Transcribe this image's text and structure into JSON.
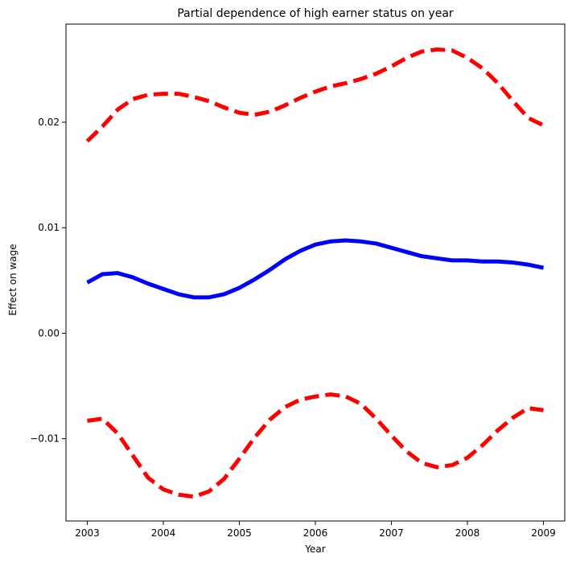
{
  "chart_data": {
    "type": "line",
    "title": "Partial dependence of high earner status on year",
    "xlabel": "Year",
    "ylabel": "Effect on wage",
    "xlim": [
      2002.72,
      2009.28
    ],
    "ylim": [
      -0.0178,
      0.0293
    ],
    "xticks": [
      2003,
      2004,
      2005,
      2006,
      2007,
      2008,
      2009
    ],
    "xtick_labels": [
      "2003",
      "2004",
      "2005",
      "2006",
      "2007",
      "2008",
      "2009"
    ],
    "yticks": [
      -0.01,
      0.0,
      0.01,
      0.02
    ],
    "ytick_labels": [
      "−0.01",
      "0.00",
      "0.01",
      "0.02"
    ],
    "grid": false,
    "series": [
      {
        "style": "solid",
        "color": "#0000ff",
        "points": [
          [
            2003.0,
            0.0048
          ],
          [
            2003.2,
            0.0056
          ],
          [
            2003.4,
            0.0057
          ],
          [
            2003.6,
            0.0053
          ],
          [
            2003.8,
            0.0047
          ],
          [
            2004.0,
            0.0042
          ],
          [
            2004.2,
            0.0037
          ],
          [
            2004.4,
            0.0034
          ],
          [
            2004.6,
            0.0034
          ],
          [
            2004.8,
            0.0037
          ],
          [
            2005.0,
            0.0043
          ],
          [
            2005.2,
            0.0051
          ],
          [
            2005.4,
            0.006
          ],
          [
            2005.6,
            0.007
          ],
          [
            2005.8,
            0.0078
          ],
          [
            2006.0,
            0.0084
          ],
          [
            2006.2,
            0.0087
          ],
          [
            2006.4,
            0.0088
          ],
          [
            2006.6,
            0.0087
          ],
          [
            2006.8,
            0.0085
          ],
          [
            2007.0,
            0.0081
          ],
          [
            2007.2,
            0.0077
          ],
          [
            2007.4,
            0.0073
          ],
          [
            2007.6,
            0.0071
          ],
          [
            2007.8,
            0.0069
          ],
          [
            2008.0,
            0.0069
          ],
          [
            2008.2,
            0.0068
          ],
          [
            2008.4,
            0.0068
          ],
          [
            2008.6,
            0.0067
          ],
          [
            2008.8,
            0.0065
          ],
          [
            2009.0,
            0.0062
          ]
        ]
      },
      {
        "style": "dashed",
        "color": "#ff0000",
        "points": [
          [
            2003.0,
            0.0182
          ],
          [
            2003.2,
            0.0196
          ],
          [
            2003.4,
            0.0212
          ],
          [
            2003.6,
            0.0222
          ],
          [
            2003.8,
            0.0226
          ],
          [
            2004.0,
            0.0227
          ],
          [
            2004.2,
            0.0227
          ],
          [
            2004.4,
            0.0224
          ],
          [
            2004.6,
            0.022
          ],
          [
            2004.8,
            0.0214
          ],
          [
            2005.0,
            0.0209
          ],
          [
            2005.2,
            0.0207
          ],
          [
            2005.4,
            0.021
          ],
          [
            2005.6,
            0.0216
          ],
          [
            2005.8,
            0.0223
          ],
          [
            2006.0,
            0.0229
          ],
          [
            2006.2,
            0.0234
          ],
          [
            2006.4,
            0.0237
          ],
          [
            2006.6,
            0.0241
          ],
          [
            2006.8,
            0.0246
          ],
          [
            2007.0,
            0.0253
          ],
          [
            2007.2,
            0.0261
          ],
          [
            2007.4,
            0.0267
          ],
          [
            2007.6,
            0.0269
          ],
          [
            2007.8,
            0.0268
          ],
          [
            2008.0,
            0.0261
          ],
          [
            2008.2,
            0.0251
          ],
          [
            2008.4,
            0.0237
          ],
          [
            2008.6,
            0.022
          ],
          [
            2008.8,
            0.0204
          ],
          [
            2009.0,
            0.0197
          ]
        ]
      },
      {
        "style": "dashed",
        "color": "#ff0000",
        "points": [
          [
            2003.0,
            -0.0083
          ],
          [
            2003.2,
            -0.0081
          ],
          [
            2003.4,
            -0.0095
          ],
          [
            2003.6,
            -0.0116
          ],
          [
            2003.8,
            -0.0137
          ],
          [
            2004.0,
            -0.0148
          ],
          [
            2004.2,
            -0.0153
          ],
          [
            2004.4,
            -0.0155
          ],
          [
            2004.6,
            -0.015
          ],
          [
            2004.8,
            -0.0138
          ],
          [
            2005.0,
            -0.0119
          ],
          [
            2005.2,
            -0.0099
          ],
          [
            2005.4,
            -0.0082
          ],
          [
            2005.6,
            -0.007
          ],
          [
            2005.8,
            -0.0063
          ],
          [
            2006.0,
            -0.006
          ],
          [
            2006.2,
            -0.0058
          ],
          [
            2006.4,
            -0.006
          ],
          [
            2006.6,
            -0.0067
          ],
          [
            2006.8,
            -0.0081
          ],
          [
            2007.0,
            -0.0097
          ],
          [
            2007.2,
            -0.0112
          ],
          [
            2007.4,
            -0.0123
          ],
          [
            2007.6,
            -0.0127
          ],
          [
            2007.8,
            -0.0125
          ],
          [
            2008.0,
            -0.0118
          ],
          [
            2008.2,
            -0.0106
          ],
          [
            2008.4,
            -0.0092
          ],
          [
            2008.6,
            -0.008
          ],
          [
            2008.8,
            -0.0071
          ],
          [
            2009.0,
            -0.0073
          ]
        ]
      }
    ]
  }
}
